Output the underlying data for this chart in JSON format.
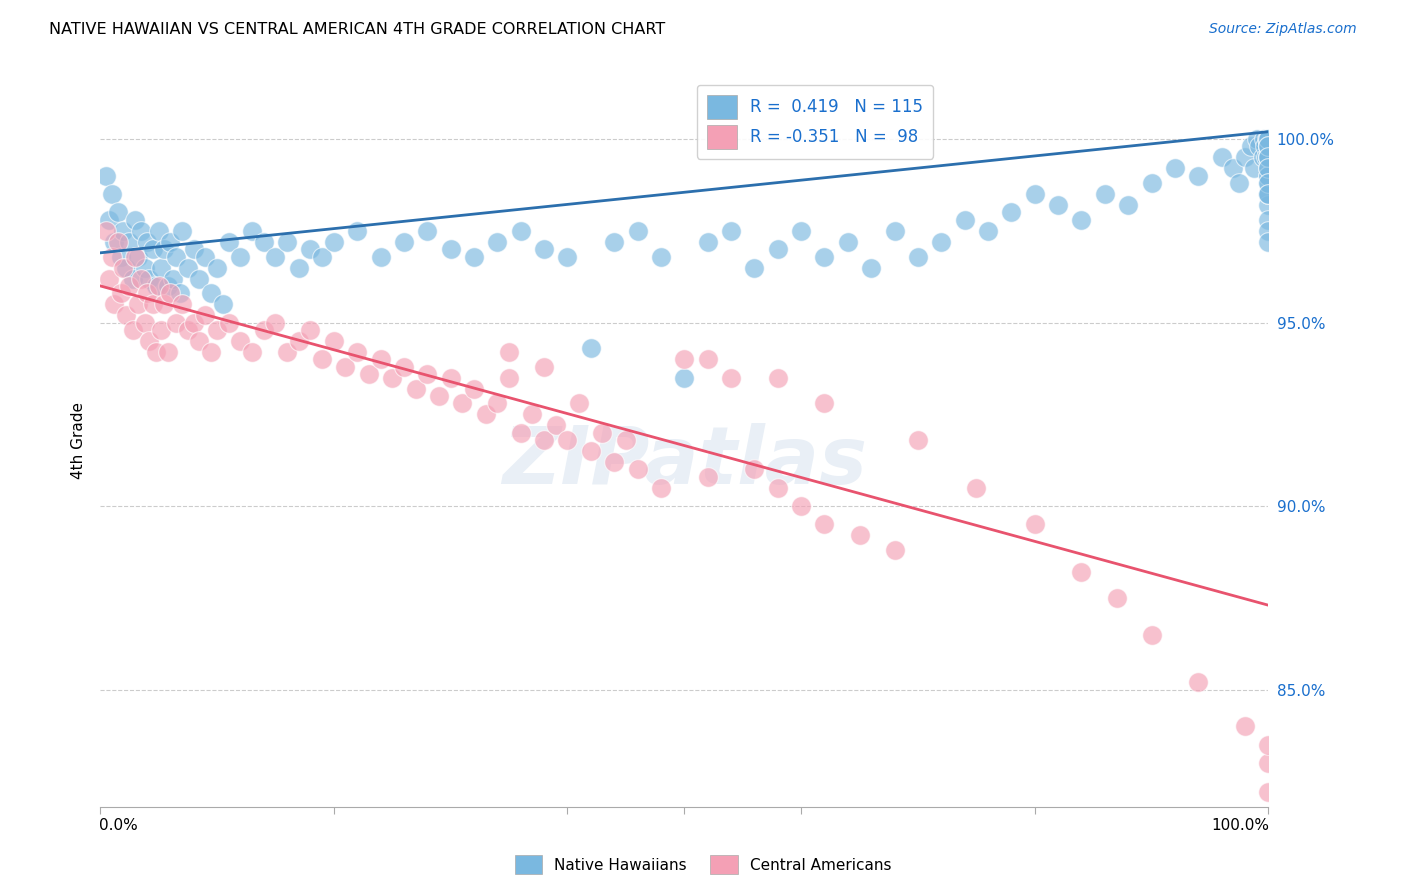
{
  "title": "NATIVE HAWAIIAN VS CENTRAL AMERICAN 4TH GRADE CORRELATION CHART",
  "source": "Source: ZipAtlas.com",
  "ylabel": "4th Grade",
  "ytick_labels": [
    "100.0%",
    "95.0%",
    "90.0%",
    "85.0%"
  ],
  "ytick_positions": [
    1.0,
    0.95,
    0.9,
    0.85
  ],
  "xmin": 0.0,
  "xmax": 1.0,
  "ymin": 0.818,
  "ymax": 1.018,
  "blue_color": "#7ab8e0",
  "pink_color": "#f4a0b5",
  "blue_line_color": "#2c6fad",
  "pink_line_color": "#e8536e",
  "watermark": "ZIPatlas",
  "blue_trend_x": [
    0.0,
    1.0
  ],
  "blue_trend_y": [
    0.969,
    1.002
  ],
  "pink_trend_x": [
    0.0,
    1.0
  ],
  "pink_trend_y": [
    0.96,
    0.873
  ],
  "blue_scatter_x": [
    0.005,
    0.008,
    0.01,
    0.012,
    0.015,
    0.018,
    0.02,
    0.022,
    0.025,
    0.028,
    0.03,
    0.032,
    0.035,
    0.038,
    0.04,
    0.042,
    0.045,
    0.048,
    0.05,
    0.052,
    0.055,
    0.058,
    0.06,
    0.062,
    0.065,
    0.068,
    0.07,
    0.075,
    0.08,
    0.085,
    0.09,
    0.095,
    0.1,
    0.105,
    0.11,
    0.12,
    0.13,
    0.14,
    0.15,
    0.16,
    0.17,
    0.18,
    0.19,
    0.2,
    0.22,
    0.24,
    0.26,
    0.28,
    0.3,
    0.32,
    0.34,
    0.36,
    0.38,
    0.4,
    0.42,
    0.44,
    0.46,
    0.48,
    0.5,
    0.52,
    0.54,
    0.56,
    0.58,
    0.6,
    0.62,
    0.64,
    0.66,
    0.68,
    0.7,
    0.72,
    0.74,
    0.76,
    0.78,
    0.8,
    0.82,
    0.84,
    0.86,
    0.88,
    0.9,
    0.92,
    0.94,
    0.96,
    0.97,
    0.975,
    0.98,
    0.985,
    0.988,
    0.99,
    0.992,
    0.995,
    0.996,
    0.997,
    0.998,
    0.999,
    1.0,
    1.0,
    1.0,
    1.0,
    1.0,
    1.0,
    1.0,
    1.0,
    1.0,
    1.0,
    1.0,
    1.0,
    1.0,
    1.0,
    1.0,
    1.0,
    1.0,
    1.0,
    1.0,
    1.0,
    1.0
  ],
  "blue_scatter_y": [
    0.99,
    0.978,
    0.985,
    0.972,
    0.98,
    0.968,
    0.975,
    0.965,
    0.972,
    0.962,
    0.978,
    0.968,
    0.975,
    0.965,
    0.972,
    0.962,
    0.97,
    0.96,
    0.975,
    0.965,
    0.97,
    0.96,
    0.972,
    0.962,
    0.968,
    0.958,
    0.975,
    0.965,
    0.97,
    0.962,
    0.968,
    0.958,
    0.965,
    0.955,
    0.972,
    0.968,
    0.975,
    0.972,
    0.968,
    0.972,
    0.965,
    0.97,
    0.968,
    0.972,
    0.975,
    0.968,
    0.972,
    0.975,
    0.97,
    0.968,
    0.972,
    0.975,
    0.97,
    0.968,
    0.943,
    0.972,
    0.975,
    0.968,
    0.935,
    0.972,
    0.975,
    0.965,
    0.97,
    0.975,
    0.968,
    0.972,
    0.965,
    0.975,
    0.968,
    0.972,
    0.978,
    0.975,
    0.98,
    0.985,
    0.982,
    0.978,
    0.985,
    0.982,
    0.988,
    0.992,
    0.99,
    0.995,
    0.992,
    0.988,
    0.995,
    0.998,
    0.992,
    1.0,
    0.998,
    0.995,
    1.0,
    0.998,
    0.995,
    1.0,
    1.0,
    0.998,
    0.995,
    0.992,
    0.99,
    0.988,
    0.985,
    0.982,
    0.978,
    0.975,
    0.972,
    0.985,
    0.99,
    0.995,
    0.998,
    1.0,
    0.998,
    0.995,
    0.992,
    0.988,
    0.985
  ],
  "pink_scatter_x": [
    0.005,
    0.008,
    0.01,
    0.012,
    0.015,
    0.018,
    0.02,
    0.022,
    0.025,
    0.028,
    0.03,
    0.032,
    0.035,
    0.038,
    0.04,
    0.042,
    0.045,
    0.048,
    0.05,
    0.052,
    0.055,
    0.058,
    0.06,
    0.065,
    0.07,
    0.075,
    0.08,
    0.085,
    0.09,
    0.095,
    0.1,
    0.11,
    0.12,
    0.13,
    0.14,
    0.15,
    0.16,
    0.17,
    0.18,
    0.19,
    0.2,
    0.21,
    0.22,
    0.23,
    0.24,
    0.25,
    0.26,
    0.27,
    0.28,
    0.29,
    0.3,
    0.31,
    0.32,
    0.33,
    0.34,
    0.35,
    0.36,
    0.37,
    0.38,
    0.39,
    0.4,
    0.41,
    0.42,
    0.43,
    0.44,
    0.45,
    0.46,
    0.48,
    0.5,
    0.52,
    0.54,
    0.56,
    0.58,
    0.6,
    0.62,
    0.65,
    0.68,
    0.35,
    0.38,
    0.52,
    0.58,
    0.62,
    0.7,
    0.75,
    0.8,
    0.84,
    0.87,
    0.9,
    0.94,
    0.98,
    1.0,
    1.0,
    1.0
  ],
  "pink_scatter_y": [
    0.975,
    0.962,
    0.968,
    0.955,
    0.972,
    0.958,
    0.965,
    0.952,
    0.96,
    0.948,
    0.968,
    0.955,
    0.962,
    0.95,
    0.958,
    0.945,
    0.955,
    0.942,
    0.96,
    0.948,
    0.955,
    0.942,
    0.958,
    0.95,
    0.955,
    0.948,
    0.95,
    0.945,
    0.952,
    0.942,
    0.948,
    0.95,
    0.945,
    0.942,
    0.948,
    0.95,
    0.942,
    0.945,
    0.948,
    0.94,
    0.945,
    0.938,
    0.942,
    0.936,
    0.94,
    0.935,
    0.938,
    0.932,
    0.936,
    0.93,
    0.935,
    0.928,
    0.932,
    0.925,
    0.928,
    0.935,
    0.92,
    0.925,
    0.918,
    0.922,
    0.918,
    0.928,
    0.915,
    0.92,
    0.912,
    0.918,
    0.91,
    0.905,
    0.94,
    0.908,
    0.935,
    0.91,
    0.905,
    0.9,
    0.895,
    0.892,
    0.888,
    0.942,
    0.938,
    0.94,
    0.935,
    0.928,
    0.918,
    0.905,
    0.895,
    0.882,
    0.875,
    0.865,
    0.852,
    0.84,
    0.83,
    0.822,
    0.835
  ]
}
